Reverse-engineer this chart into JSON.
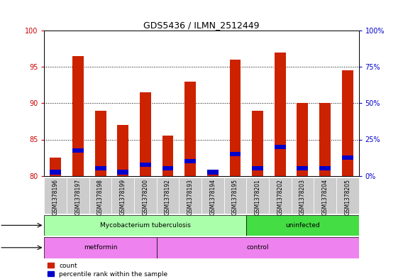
{
  "title": "GDS5436 / ILMN_2512449",
  "samples": [
    "GSM1378196",
    "GSM1378197",
    "GSM1378198",
    "GSM1378199",
    "GSM1378200",
    "GSM1378192",
    "GSM1378193",
    "GSM1378194",
    "GSM1378195",
    "GSM1378201",
    "GSM1378202",
    "GSM1378203",
    "GSM1378204",
    "GSM1378205"
  ],
  "red_values": [
    82.5,
    96.5,
    89.0,
    87.0,
    91.5,
    85.5,
    93.0,
    80.5,
    96.0,
    89.0,
    97.0,
    90.0,
    90.0,
    94.5
  ],
  "blue_values": [
    80.5,
    83.5,
    81.0,
    80.5,
    81.5,
    81.0,
    82.0,
    80.5,
    83.0,
    81.0,
    84.0,
    81.0,
    81.0,
    82.5
  ],
  "ymin": 80,
  "ymax": 100,
  "yticks_left": [
    80,
    85,
    90,
    95,
    100
  ],
  "infection_groups": [
    {
      "label": "Mycobacterium tuberculosis",
      "start": 0,
      "end": 9,
      "color": "#AAFFAA"
    },
    {
      "label": "uninfected",
      "start": 9,
      "end": 14,
      "color": "#44DD44"
    }
  ],
  "agent_groups": [
    {
      "label": "metformin",
      "start": 0,
      "end": 5,
      "color": "#EE82EE"
    },
    {
      "label": "control",
      "start": 5,
      "end": 14,
      "color": "#EE82EE"
    }
  ],
  "bar_color": "#CC2200",
  "blue_color": "#0000CC",
  "bar_width": 0.5,
  "left_axis_color": "#CC0000",
  "right_axis_color": "#0000CC",
  "tick_bg_color": "#CCCCCC"
}
